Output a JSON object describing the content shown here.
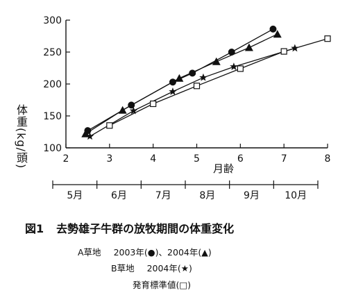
{
  "chart_data": {
    "type": "line",
    "xlabel": "月齢",
    "ylabel": "体重(kg/頭)",
    "xlim": [
      2,
      8
    ],
    "ylim": [
      100,
      300
    ],
    "x_ticks": [
      2,
      3,
      4,
      5,
      6,
      7,
      8
    ],
    "y_ticks": [
      100,
      150,
      200,
      250,
      300
    ],
    "secondary_axis_labels": [
      "5月",
      "6月",
      "7月",
      "8月",
      "9月",
      "10月"
    ],
    "series": [
      {
        "name": "A草地 2003年",
        "marker": "circle-filled",
        "color": "#111111",
        "x": [
          2.5,
          3.5,
          4.45,
          4.9,
          5.8,
          6.75
        ],
        "y": [
          127,
          167,
          203,
          217,
          250,
          286
        ]
      },
      {
        "name": "A草地 2004年",
        "marker": "triangle-filled",
        "color": "#111111",
        "x": [
          2.45,
          3.3,
          4.6,
          5.45,
          6.2,
          6.85
        ],
        "y": [
          122,
          159,
          209,
          235,
          257,
          278
        ]
      },
      {
        "name": "B草地 2004年",
        "marker": "star",
        "color": "#111111",
        "x": [
          2.55,
          3.55,
          4.45,
          5.15,
          5.85,
          7.25
        ],
        "y": [
          118,
          158,
          188,
          210,
          227,
          256
        ]
      },
      {
        "name": "発育標準値",
        "marker": "square-open",
        "color": "#111111",
        "x": [
          3.0,
          4.0,
          5.0,
          6.0,
          7.0,
          8.0
        ],
        "y": [
          135,
          169,
          197,
          224,
          251,
          271
        ]
      }
    ]
  },
  "figure": {
    "number": "図1",
    "title": "去勢雄子牛群の放牧期間の体重変化"
  },
  "captions": {
    "line1_label": "A草地",
    "line1_text": "2003年(●)、2004年(▲)",
    "line2_label": "B草地",
    "line2_text": "2004年(★)",
    "line3_text": "発育標準値(□)"
  }
}
